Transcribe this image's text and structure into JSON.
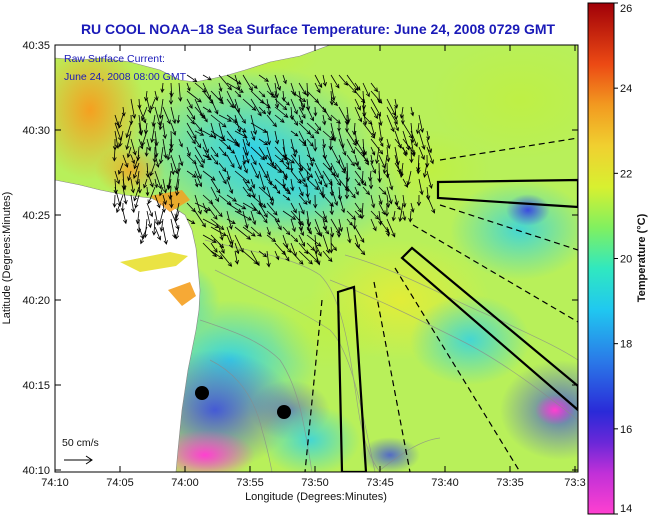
{
  "title": "RU COOL  NOAA–18  Sea Surface Temperature:  June 24, 2008 0729 GMT",
  "annotation": {
    "line1": "Raw Surface Current:",
    "line2": "June 24, 2008 08:00 GMT"
  },
  "scale_bar_label": "50 cm/s",
  "axes": {
    "xlabel": "Longitude (Degrees:Minutes)",
    "ylabel": "Latitude (Degrees:Minutes)",
    "x_ticks": [
      "74:10",
      "74:05",
      "74:00",
      "73:55",
      "73:50",
      "73:45",
      "73:40",
      "73:35",
      "73:3"
    ],
    "y_ticks": [
      "40:35",
      "40:30",
      "40:25",
      "40:20",
      "40:15",
      "40:10"
    ]
  },
  "colorbar": {
    "label": "Temperature (°C)",
    "ticks": [
      "26",
      "24",
      "22",
      "20",
      "18",
      "16",
      "14"
    ],
    "range": [
      14,
      26
    ],
    "colors": [
      "#ff40d0",
      "#9a30d8",
      "#2a2ad8",
      "#2a6ee8",
      "#20c8f0",
      "#30e8b0",
      "#a8f040",
      "#e6ee30",
      "#f0c030",
      "#f28020",
      "#e82a10",
      "#a00008"
    ]
  },
  "colors": {
    "title": "#1a1ab8",
    "land": "#ffffff",
    "vector": "#000000"
  }
}
